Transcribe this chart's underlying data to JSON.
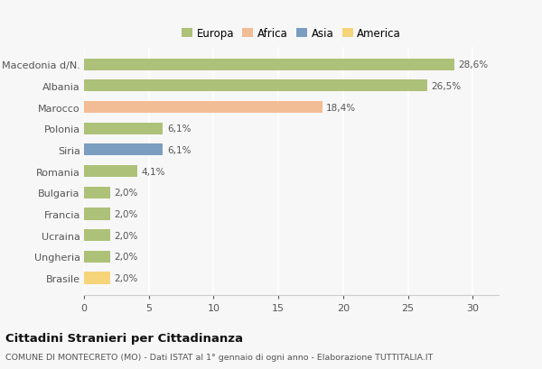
{
  "categories": [
    "Macedonia d/N.",
    "Albania",
    "Marocco",
    "Polonia",
    "Siria",
    "Romania",
    "Bulgaria",
    "Francia",
    "Ucraina",
    "Ungheria",
    "Brasile"
  ],
  "values": [
    28.6,
    26.5,
    18.4,
    6.1,
    6.1,
    4.1,
    2.0,
    2.0,
    2.0,
    2.0,
    2.0
  ],
  "labels": [
    "28,6%",
    "26,5%",
    "18,4%",
    "6,1%",
    "6,1%",
    "4,1%",
    "2,0%",
    "2,0%",
    "2,0%",
    "2,0%",
    "2,0%"
  ],
  "colors": [
    "#adc178",
    "#adc178",
    "#f2bc94",
    "#adc178",
    "#7b9dbf",
    "#adc178",
    "#adc178",
    "#adc178",
    "#adc178",
    "#adc178",
    "#f5d47a"
  ],
  "legend_labels": [
    "Europa",
    "Africa",
    "Asia",
    "America"
  ],
  "legend_colors": [
    "#adc178",
    "#f2bc94",
    "#7b9dbf",
    "#f5d47a"
  ],
  "title": "Cittadini Stranieri per Cittadinanza",
  "subtitle": "COMUNE DI MONTECRETO (MO) - Dati ISTAT al 1° gennaio di ogni anno - Elaborazione TUTTITALIA.IT",
  "xlim": [
    0,
    32
  ],
  "xticks": [
    0,
    5,
    10,
    15,
    20,
    25,
    30
  ],
  "background_color": "#f7f7f7",
  "grid_color": "#ffffff"
}
